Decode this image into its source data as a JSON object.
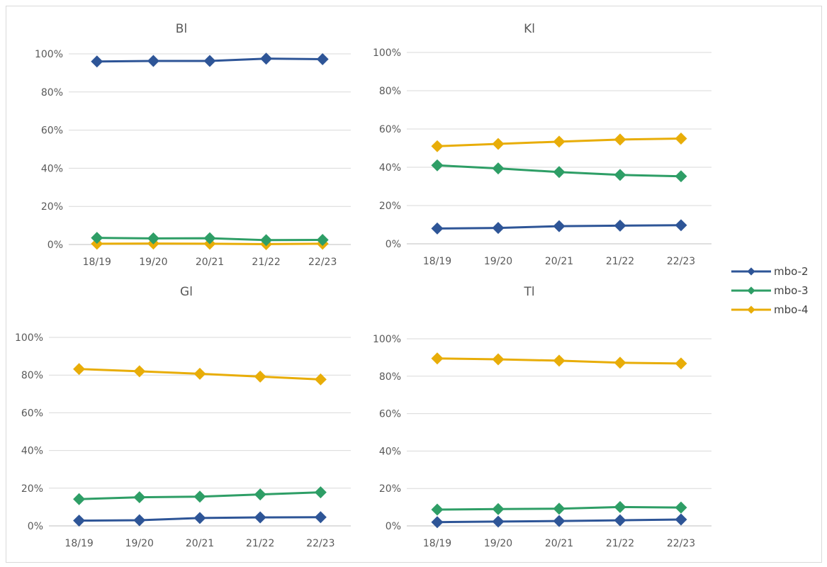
{
  "colors": {
    "mbo-2": "#2e5597",
    "mbo-3": "#2e9e66",
    "mbo-4": "#e8ad08",
    "grid": "#d9d9d9",
    "text": "#595959"
  },
  "legend": {
    "position": "right",
    "items": [
      "mbo-2",
      "mbo-3",
      "mbo-4"
    ]
  },
  "chart_data": [
    {
      "type": "line",
      "title": "Bl",
      "categories": [
        "18/19",
        "19/20",
        "20/21",
        "21/22",
        "22/23"
      ],
      "y_ticks": [
        "0%",
        "20%",
        "40%",
        "60%",
        "80%",
        "100%"
      ],
      "ylim": [
        0,
        100
      ],
      "grid": true,
      "series": [
        {
          "name": "mbo-2",
          "values": [
            96,
            96.3,
            96.3,
            97.5,
            97.2
          ]
        },
        {
          "name": "mbo-3",
          "values": [
            3.5,
            3.2,
            3.3,
            2.3,
            2.4
          ]
        },
        {
          "name": "mbo-4",
          "values": [
            0.4,
            0.5,
            0.4,
            0.2,
            0.4
          ]
        }
      ]
    },
    {
      "type": "line",
      "title": "Kl",
      "categories": [
        "18/19",
        "19/20",
        "20/21",
        "21/22",
        "22/23"
      ],
      "y_ticks": [
        "0%",
        "20%",
        "40%",
        "60%",
        "80%",
        "100%"
      ],
      "ylim": [
        0,
        100
      ],
      "grid": true,
      "series": [
        {
          "name": "mbo-2",
          "values": [
            8,
            8.3,
            9.2,
            9.5,
            9.7
          ]
        },
        {
          "name": "mbo-3",
          "values": [
            41,
            39.4,
            37.5,
            36,
            35.3
          ]
        },
        {
          "name": "mbo-4",
          "values": [
            51,
            52.2,
            53.4,
            54.5,
            55
          ]
        }
      ]
    },
    {
      "type": "line",
      "title": "Gl",
      "categories": [
        "18/19",
        "19/20",
        "20/21",
        "21/22",
        "22/23"
      ],
      "y_ticks": [
        "0%",
        "20%",
        "40%",
        "60%",
        "80%",
        "100%"
      ],
      "ylim": [
        0,
        100
      ],
      "grid": true,
      "series": [
        {
          "name": "mbo-2",
          "values": [
            2.8,
            3,
            4.2,
            4.5,
            4.6
          ]
        },
        {
          "name": "mbo-3",
          "values": [
            14.2,
            15.2,
            15.5,
            16.7,
            17.8
          ]
        },
        {
          "name": "mbo-4",
          "values": [
            83.2,
            82,
            80.7,
            79.2,
            77.7
          ]
        }
      ]
    },
    {
      "type": "line",
      "title": "Tl",
      "categories": [
        "18/19",
        "19/20",
        "20/21",
        "21/22",
        "22/23"
      ],
      "y_ticks": [
        "0%",
        "20%",
        "40%",
        "60%",
        "80%",
        "100%"
      ],
      "ylim": [
        0,
        100
      ],
      "grid": true,
      "series": [
        {
          "name": "mbo-2",
          "values": [
            2,
            2.3,
            2.6,
            3,
            3.4
          ]
        },
        {
          "name": "mbo-3",
          "values": [
            8.7,
            9,
            9.2,
            10.1,
            9.8
          ]
        },
        {
          "name": "mbo-4",
          "values": [
            89.5,
            89,
            88.3,
            87.2,
            86.8
          ]
        }
      ]
    }
  ]
}
